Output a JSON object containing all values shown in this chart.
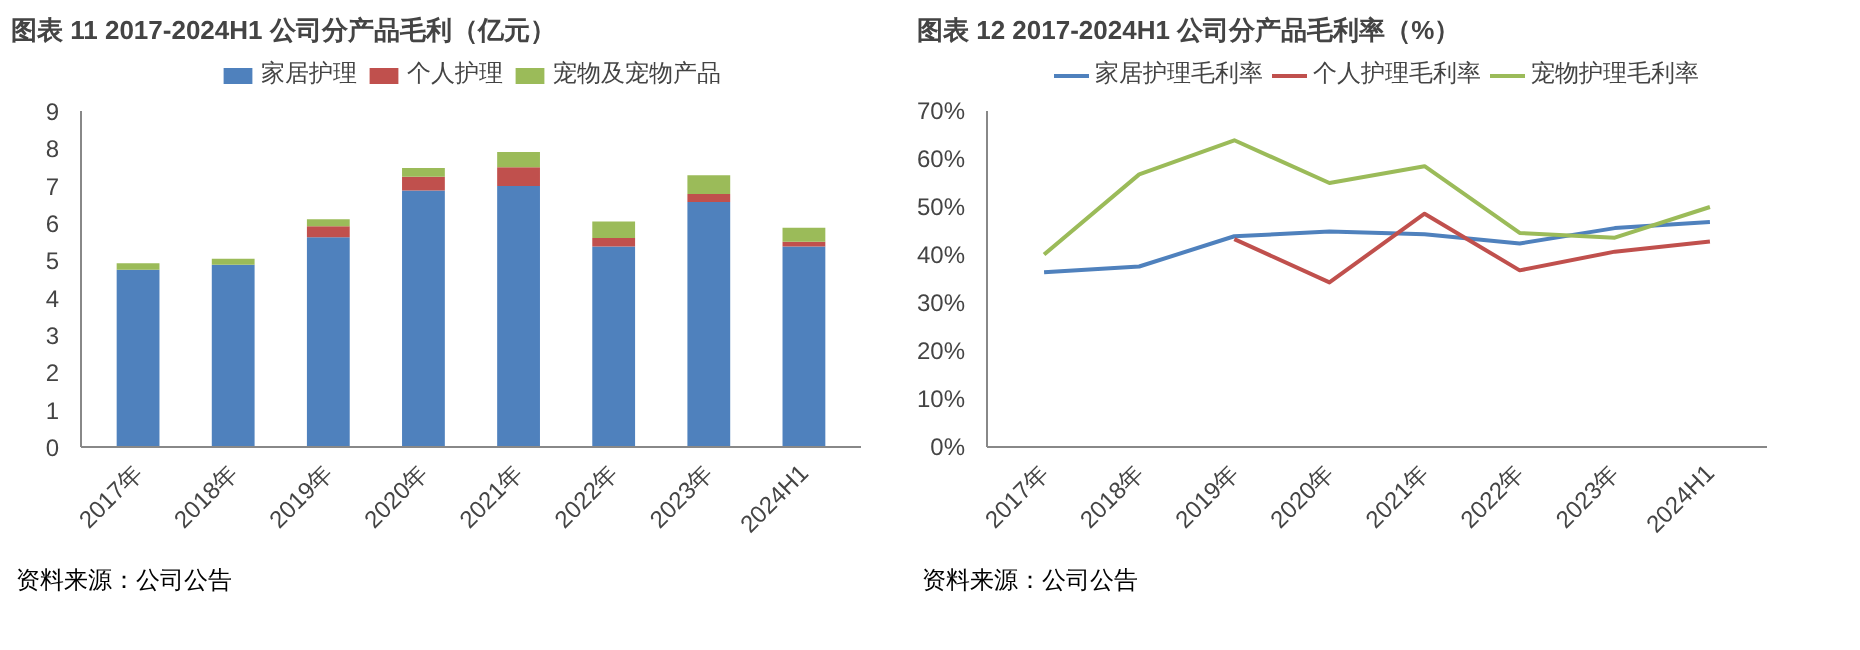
{
  "chart_data": [
    {
      "type": "bar",
      "title": "图表 11 2017-2024H1 公司分产品毛利（亿元）",
      "categories": [
        "2017年",
        "2018年",
        "2019年",
        "2020年",
        "2021年",
        "2022年",
        "2023年",
        "2024H1"
      ],
      "stacked": true,
      "ylim": [
        0,
        9
      ],
      "yticks": [
        0,
        1,
        2,
        3,
        4,
        5,
        6,
        7,
        8,
        9
      ],
      "grid": false,
      "legend": "top",
      "series": [
        {
          "name": "家居护理",
          "color": "#4f81bd",
          "values": [
            4.75,
            4.88,
            5.62,
            6.87,
            6.99,
            5.37,
            6.56,
            5.37
          ]
        },
        {
          "name": "个人护理",
          "color": "#c0504d",
          "values": [
            0,
            0,
            0.29,
            0.37,
            0.5,
            0.23,
            0.22,
            0.13
          ]
        },
        {
          "name": "宠物及宠物产品",
          "color": "#9bbb59",
          "values": [
            0.17,
            0.16,
            0.19,
            0.23,
            0.41,
            0.44,
            0.5,
            0.37
          ]
        }
      ],
      "annotations": [
        "资料来源：公司公告"
      ]
    },
    {
      "type": "line",
      "title": "图表 12 2017-2024H1 公司分产品毛利率（%）",
      "categories": [
        "2017年",
        "2018年",
        "2019年",
        "2020年",
        "2021年",
        "2022年",
        "2023年",
        "2024H1"
      ],
      "ylim": [
        0,
        70
      ],
      "yticks": [
        {
          "value": 0,
          "label": "0%"
        },
        {
          "value": 10,
          "label": "10%"
        },
        {
          "value": 20,
          "label": "20%"
        },
        {
          "value": 30,
          "label": "30%"
        },
        {
          "value": 40,
          "label": "40%"
        },
        {
          "value": 50,
          "label": "50%"
        },
        {
          "value": 60,
          "label": "60%"
        },
        {
          "value": 70,
          "label": "70%"
        }
      ],
      "grid": false,
      "legend": "top",
      "marker": "none",
      "line_style": "solid",
      "series": [
        {
          "name": "家居护理毛利率",
          "color": "#4f81bd",
          "values": [
            36.4,
            37.6,
            43.9,
            44.9,
            44.3,
            42.4,
            45.6,
            46.9
          ]
        },
        {
          "name": "个人护理毛利率",
          "color": "#c0504d",
          "values": [
            null,
            null,
            43.3,
            34.3,
            48.6,
            36.8,
            40.7,
            42.8
          ]
        },
        {
          "name": "宠物护理毛利率",
          "color": "#9bbb59",
          "values": [
            40.1,
            56.8,
            63.9,
            55.0,
            58.5,
            44.6,
            43.6,
            50.0
          ]
        }
      ],
      "annotations": [
        "资料来源：公司公告"
      ]
    }
  ]
}
